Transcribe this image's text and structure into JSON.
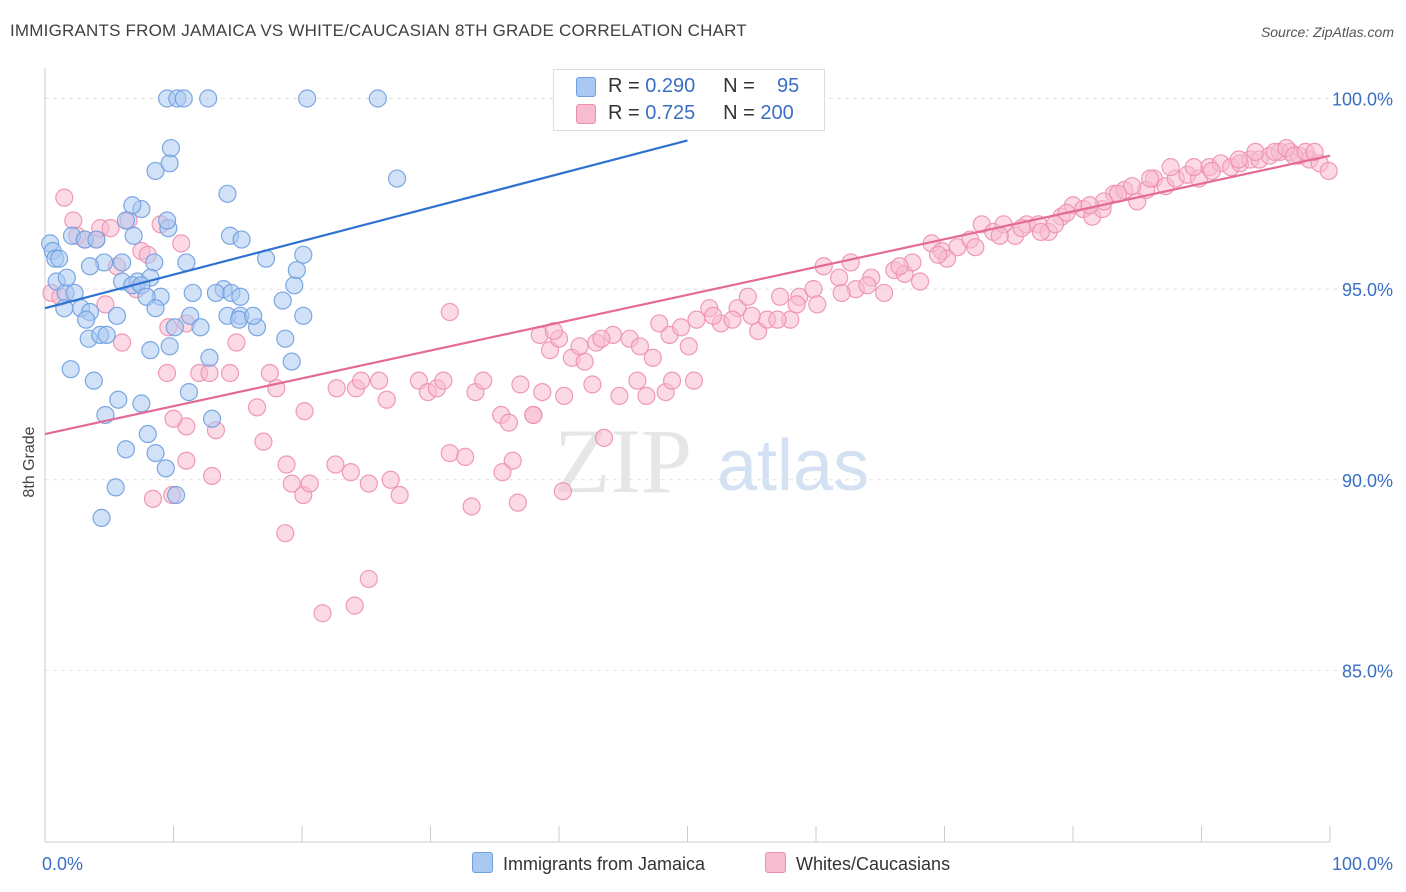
{
  "title": "IMMIGRANTS FROM JAMAICA VS WHITE/CAUCASIAN 8TH GRADE CORRELATION CHART",
  "source": "Source: ZipAtlas.com",
  "watermark": {
    "zip": "ZIP",
    "atlas": "atlas"
  },
  "legend": {
    "rows": [
      {
        "r_label": "R =",
        "r_value": "0.290",
        "n_label": "N =",
        "n_value": "95"
      },
      {
        "r_label": "R =",
        "r_value": "0.725",
        "n_label": "N =",
        "n_value": "200"
      }
    ]
  },
  "colors": {
    "blue_fill": "#a9c9f3",
    "blue_stroke": "#6f9fe0",
    "blue_line": "#2f72d0",
    "pink_fill": "#f7bcd0",
    "pink_stroke": "#ee8fb1",
    "pink_line": "#e46a96",
    "axis_label": "#3b6fc4"
  },
  "chart_data": {
    "type": "scatter",
    "title": "IMMIGRANTS FROM JAMAICA VS WHITE/CAUCASIAN 8TH GRADE CORRELATION CHART",
    "xlabel": "",
    "ylabel": "8th Grade",
    "xlim": [
      0,
      100
    ],
    "ylim": [
      80.5,
      100.8
    ],
    "x_tick_labels": [
      "0.0%",
      "100.0%"
    ],
    "y_ticks": [
      85,
      90,
      95,
      100
    ],
    "y_tick_labels": [
      "85.0%",
      "90.0%",
      "95.0%",
      "100.0%"
    ],
    "grid": true,
    "legend_position": "bottom-center",
    "series": [
      {
        "name": "Immigrants from Jamaica",
        "color": "#a9c9f3",
        "trendline": {
          "x": [
            0,
            50
          ],
          "y": [
            94.5,
            98.9
          ]
        },
        "points": [
          [
            0.4,
            96.2
          ],
          [
            0.6,
            96.0
          ],
          [
            0.8,
            95.8
          ],
          [
            1.1,
            95.8
          ],
          [
            0.9,
            95.2
          ],
          [
            1.6,
            94.9
          ],
          [
            1.7,
            95.3
          ],
          [
            2.3,
            94.9
          ],
          [
            1.5,
            94.5
          ],
          [
            2.8,
            94.5
          ],
          [
            3.5,
            94.4
          ],
          [
            3.2,
            94.2
          ],
          [
            3.4,
            93.7
          ],
          [
            4.3,
            93.8
          ],
          [
            4.8,
            93.8
          ],
          [
            5.6,
            94.3
          ],
          [
            2.0,
            92.9
          ],
          [
            3.8,
            92.6
          ],
          [
            5.7,
            92.1
          ],
          [
            4.7,
            91.7
          ],
          [
            7.5,
            92.0
          ],
          [
            6.3,
            90.8
          ],
          [
            8.6,
            90.7
          ],
          [
            5.5,
            89.8
          ],
          [
            9.4,
            90.3
          ],
          [
            10.2,
            89.6
          ],
          [
            4.4,
            89.0
          ],
          [
            2.1,
            96.4
          ],
          [
            3.1,
            96.3
          ],
          [
            4.0,
            96.3
          ],
          [
            6.9,
            96.4
          ],
          [
            9.6,
            96.6
          ],
          [
            4.6,
            95.7
          ],
          [
            3.5,
            95.6
          ],
          [
            6.0,
            95.7
          ],
          [
            8.5,
            95.7
          ],
          [
            6.0,
            95.2
          ],
          [
            7.2,
            95.2
          ],
          [
            8.2,
            95.3
          ],
          [
            6.8,
            95.1
          ],
          [
            7.5,
            95.1
          ],
          [
            9.0,
            94.8
          ],
          [
            7.9,
            94.8
          ],
          [
            8.6,
            94.5
          ],
          [
            11.0,
            95.7
          ],
          [
            11.5,
            94.9
          ],
          [
            13.9,
            95.0
          ],
          [
            14.2,
            94.3
          ],
          [
            15.2,
            94.3
          ],
          [
            17.2,
            95.8
          ],
          [
            18.5,
            94.7
          ],
          [
            19.4,
            95.1
          ],
          [
            19.6,
            95.5
          ],
          [
            20.1,
            95.9
          ],
          [
            6.3,
            96.8
          ],
          [
            7.5,
            97.1
          ],
          [
            6.8,
            97.2
          ],
          [
            9.5,
            96.8
          ],
          [
            8.6,
            98.1
          ],
          [
            9.7,
            98.3
          ],
          [
            9.8,
            98.7
          ],
          [
            14.2,
            97.5
          ],
          [
            14.4,
            96.4
          ],
          [
            15.3,
            96.3
          ],
          [
            9.5,
            100.0
          ],
          [
            10.3,
            100.0
          ],
          [
            10.8,
            100.0
          ],
          [
            12.7,
            100.0
          ],
          [
            20.4,
            100.0
          ],
          [
            25.9,
            100.0
          ],
          [
            27.4,
            97.9
          ],
          [
            13.3,
            94.9
          ],
          [
            14.5,
            94.9
          ],
          [
            11.3,
            94.3
          ],
          [
            12.1,
            94.0
          ],
          [
            16.5,
            94.0
          ],
          [
            15.1,
            94.2
          ],
          [
            20.1,
            94.3
          ],
          [
            18.7,
            93.7
          ],
          [
            9.7,
            93.5
          ],
          [
            8.2,
            93.4
          ],
          [
            10.1,
            94.0
          ],
          [
            15.2,
            94.8
          ],
          [
            16.2,
            94.3
          ],
          [
            12.8,
            93.2
          ],
          [
            19.2,
            93.1
          ],
          [
            8.0,
            91.2
          ],
          [
            11.2,
            92.3
          ],
          [
            13.0,
            91.6
          ]
        ]
      },
      {
        "name": "Whites/Caucasians",
        "color": "#f7bcd0",
        "trendline": {
          "x": [
            0,
            100
          ],
          "y": [
            91.2,
            98.5
          ]
        },
        "points": [
          [
            0.5,
            94.9
          ],
          [
            1.2,
            94.8
          ],
          [
            1.5,
            97.4
          ],
          [
            2.2,
            96.8
          ],
          [
            2.5,
            96.4
          ],
          [
            3.1,
            96.3
          ],
          [
            4.0,
            96.3
          ],
          [
            4.3,
            96.6
          ],
          [
            5.1,
            96.6
          ],
          [
            5.6,
            95.6
          ],
          [
            6.5,
            96.8
          ],
          [
            7.1,
            95.0
          ],
          [
            7.5,
            96.0
          ],
          [
            8.0,
            95.9
          ],
          [
            9.0,
            96.7
          ],
          [
            9.6,
            94.0
          ],
          [
            10.6,
            96.2
          ],
          [
            11.0,
            94.1
          ],
          [
            6.0,
            93.6
          ],
          [
            4.7,
            94.6
          ],
          [
            9.5,
            92.8
          ],
          [
            12.0,
            92.8
          ],
          [
            12.8,
            92.8
          ],
          [
            14.4,
            92.8
          ],
          [
            14.9,
            93.6
          ],
          [
            17.5,
            92.8
          ],
          [
            18.0,
            92.4
          ],
          [
            11.0,
            91.4
          ],
          [
            10.0,
            91.6
          ],
          [
            13.3,
            91.3
          ],
          [
            16.5,
            91.9
          ],
          [
            17.0,
            91.0
          ],
          [
            20.2,
            91.8
          ],
          [
            22.7,
            92.4
          ],
          [
            24.2,
            92.4
          ],
          [
            24.6,
            92.6
          ],
          [
            26.0,
            92.6
          ],
          [
            26.6,
            92.1
          ],
          [
            29.1,
            92.6
          ],
          [
            29.8,
            92.3
          ],
          [
            30.5,
            92.4
          ],
          [
            31.0,
            92.6
          ],
          [
            33.5,
            92.3
          ],
          [
            34.1,
            92.6
          ],
          [
            35.5,
            91.7
          ],
          [
            36.1,
            91.5
          ],
          [
            37.0,
            92.5
          ],
          [
            38.0,
            91.7
          ],
          [
            38.7,
            92.3
          ],
          [
            38.0,
            91.7
          ],
          [
            40.4,
            92.2
          ],
          [
            42.6,
            92.5
          ],
          [
            43.5,
            91.1
          ],
          [
            44.7,
            92.2
          ],
          [
            46.1,
            92.6
          ],
          [
            46.8,
            92.2
          ],
          [
            48.3,
            92.3
          ],
          [
            48.8,
            92.6
          ],
          [
            50.5,
            92.6
          ],
          [
            39.3,
            93.4
          ],
          [
            38.5,
            93.8
          ],
          [
            40.0,
            93.7
          ],
          [
            41.0,
            93.2
          ],
          [
            42.0,
            93.1
          ],
          [
            44.2,
            93.8
          ],
          [
            45.5,
            93.7
          ],
          [
            46.3,
            93.5
          ],
          [
            48.6,
            93.8
          ],
          [
            50.1,
            93.5
          ],
          [
            41.6,
            93.5
          ],
          [
            42.9,
            93.6
          ],
          [
            31.5,
            94.4
          ],
          [
            39.6,
            93.9
          ],
          [
            43.3,
            93.7
          ],
          [
            47.3,
            93.2
          ],
          [
            47.8,
            94.1
          ],
          [
            13.0,
            90.1
          ],
          [
            11.0,
            90.5
          ],
          [
            8.4,
            89.5
          ],
          [
            9.9,
            89.6
          ],
          [
            18.8,
            90.4
          ],
          [
            19.2,
            89.9
          ],
          [
            20.1,
            89.6
          ],
          [
            20.6,
            89.9
          ],
          [
            23.8,
            90.2
          ],
          [
            22.6,
            90.4
          ],
          [
            25.2,
            89.9
          ],
          [
            26.9,
            90.0
          ],
          [
            27.6,
            89.6
          ],
          [
            31.5,
            90.7
          ],
          [
            33.2,
            89.3
          ],
          [
            32.7,
            90.6
          ],
          [
            36.4,
            90.5
          ],
          [
            35.6,
            90.2
          ],
          [
            36.8,
            89.4
          ],
          [
            40.3,
            89.7
          ],
          [
            18.7,
            88.6
          ],
          [
            21.6,
            86.5
          ],
          [
            24.1,
            86.7
          ],
          [
            25.2,
            87.4
          ],
          [
            51.7,
            94.5
          ],
          [
            52.6,
            94.1
          ],
          [
            53.9,
            94.5
          ],
          [
            54.7,
            94.8
          ],
          [
            55.5,
            93.9
          ],
          [
            56.2,
            94.2
          ],
          [
            57.2,
            94.8
          ],
          [
            58.0,
            94.2
          ],
          [
            58.7,
            94.8
          ],
          [
            59.8,
            95.0
          ],
          [
            60.6,
            95.6
          ],
          [
            61.8,
            95.3
          ],
          [
            62.7,
            95.7
          ],
          [
            63.1,
            95.0
          ],
          [
            64.3,
            95.3
          ],
          [
            65.3,
            94.9
          ],
          [
            66.1,
            95.5
          ],
          [
            66.9,
            95.4
          ],
          [
            67.5,
            95.7
          ],
          [
            68.1,
            95.2
          ],
          [
            69.0,
            96.2
          ],
          [
            69.8,
            96.0
          ],
          [
            71.0,
            96.1
          ],
          [
            72.0,
            96.3
          ],
          [
            72.9,
            96.7
          ],
          [
            73.8,
            96.5
          ],
          [
            74.6,
            96.7
          ],
          [
            75.5,
            96.4
          ],
          [
            76.4,
            96.7
          ],
          [
            77.3,
            96.7
          ],
          [
            78.1,
            96.5
          ],
          [
            79.1,
            96.9
          ],
          [
            80.0,
            97.2
          ],
          [
            80.8,
            97.1
          ],
          [
            81.5,
            96.9
          ],
          [
            82.3,
            97.1
          ],
          [
            83.2,
            97.5
          ],
          [
            84.0,
            97.6
          ],
          [
            85.0,
            97.3
          ],
          [
            85.7,
            97.6
          ],
          [
            86.3,
            97.9
          ],
          [
            87.2,
            97.7
          ],
          [
            88.0,
            97.9
          ],
          [
            88.9,
            98.0
          ],
          [
            89.8,
            97.9
          ],
          [
            90.6,
            98.2
          ],
          [
            91.5,
            98.3
          ],
          [
            92.3,
            98.2
          ],
          [
            93.0,
            98.3
          ],
          [
            93.8,
            98.4
          ],
          [
            94.5,
            98.4
          ],
          [
            95.3,
            98.5
          ],
          [
            96.1,
            98.6
          ],
          [
            96.9,
            98.6
          ],
          [
            97.6,
            98.5
          ],
          [
            98.4,
            98.4
          ],
          [
            99.2,
            98.3
          ],
          [
            99.9,
            98.1
          ],
          [
            89.4,
            98.2
          ],
          [
            90.8,
            98.1
          ],
          [
            92.9,
            98.4
          ],
          [
            94.2,
            98.6
          ],
          [
            95.7,
            98.6
          ],
          [
            96.6,
            98.7
          ],
          [
            97.2,
            98.5
          ],
          [
            98.1,
            98.6
          ],
          [
            98.8,
            98.6
          ],
          [
            87.6,
            98.2
          ],
          [
            86.0,
            97.9
          ],
          [
            84.6,
            97.7
          ],
          [
            83.5,
            97.5
          ],
          [
            82.4,
            97.3
          ],
          [
            81.3,
            97.2
          ],
          [
            79.5,
            97.0
          ],
          [
            78.6,
            96.7
          ],
          [
            77.5,
            96.5
          ],
          [
            76.0,
            96.6
          ],
          [
            74.3,
            96.4
          ],
          [
            72.4,
            96.1
          ],
          [
            70.2,
            95.8
          ],
          [
            69.5,
            95.9
          ],
          [
            66.5,
            95.6
          ],
          [
            64.0,
            95.1
          ],
          [
            62.0,
            94.9
          ],
          [
            60.1,
            94.6
          ],
          [
            58.5,
            94.6
          ],
          [
            57.0,
            94.2
          ],
          [
            55.0,
            94.3
          ],
          [
            53.5,
            94.2
          ],
          [
            52.0,
            94.3
          ],
          [
            50.7,
            94.2
          ],
          [
            49.5,
            94.0
          ]
        ]
      }
    ]
  },
  "bottom_legend": {
    "items": [
      {
        "label": "Immigrants from Jamaica"
      },
      {
        "label": "Whites/Caucasians"
      }
    ]
  }
}
